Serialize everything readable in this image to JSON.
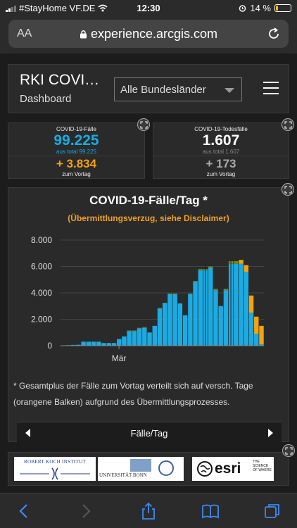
{
  "status": {
    "carrier": "#StayHome VF.DE",
    "time": "12:30",
    "battery": "14 %",
    "battery_level": 0.14
  },
  "browser": {
    "aa_label": "AA",
    "url": "experience.arcgis.com"
  },
  "header": {
    "title": "RKI COVI…",
    "subtitle": "Dashboard",
    "select_value": "Alle Bundesländer"
  },
  "cases_card": {
    "label": "COVID-19-Fälle",
    "value": "99.225",
    "total": "aus total 99.225",
    "delta": "+ 3.834",
    "delta_label": "zum Vortag"
  },
  "deaths_card": {
    "label": "COVID-19-Todesfälle",
    "value": "1.607",
    "total": "aus total 1.607",
    "delta": "+ 173",
    "delta_label": "zum Vortag"
  },
  "chart_card": {
    "title": "COVID-19-Fälle/Tag *",
    "subtitle": "(Übermittlungsverzug, siehe Disclaimer)",
    "note": "* Gesamtplus der Fälle zum Vortag verteilt sich auf versch. Tage (orangene Balken) aufgrund des Übermittlungsprozesses.",
    "nav_label": "Fälle/Tag"
  },
  "chart_data": {
    "type": "bar",
    "x_tick_label": "Mär",
    "ylim": [
      0,
      8000
    ],
    "y_ticks": [
      "0",
      "2.000",
      "4.000",
      "6.000",
      "8.000"
    ],
    "series": [
      {
        "values": [
          30,
          40,
          60,
          70,
          300,
          300,
          300,
          300,
          200,
          200,
          200,
          500,
          700,
          1100,
          1100,
          1300,
          1350,
          1000,
          1500,
          2800,
          3200,
          3900,
          3900,
          3200,
          2300,
          3900,
          4800,
          5700,
          5700,
          5900,
          4200,
          3000,
          4200,
          6200,
          6200,
          6200,
          5600,
          2500,
          900,
          100
        ]
      },
      {
        "values": [
          0,
          0,
          0,
          0,
          0,
          0,
          0,
          0,
          0,
          0,
          0,
          0,
          0,
          50,
          50,
          50,
          50,
          0,
          0,
          50,
          50,
          50,
          50,
          0,
          0,
          50,
          100,
          100,
          100,
          100,
          100,
          0,
          100,
          200,
          200,
          300,
          500,
          1300,
          1300,
          1400
        ]
      }
    ],
    "colors": {
      "cases": "#1aabe3",
      "delayed": "#f5a20d",
      "days": "#6b8e23"
    }
  },
  "logos": {
    "rki": "ROBERT KOCH INSTITUT",
    "uni": "UNIVERSITÄT BONN",
    "esri": "esri",
    "esri_tag": "THE SCIENCE OF WHERE"
  }
}
